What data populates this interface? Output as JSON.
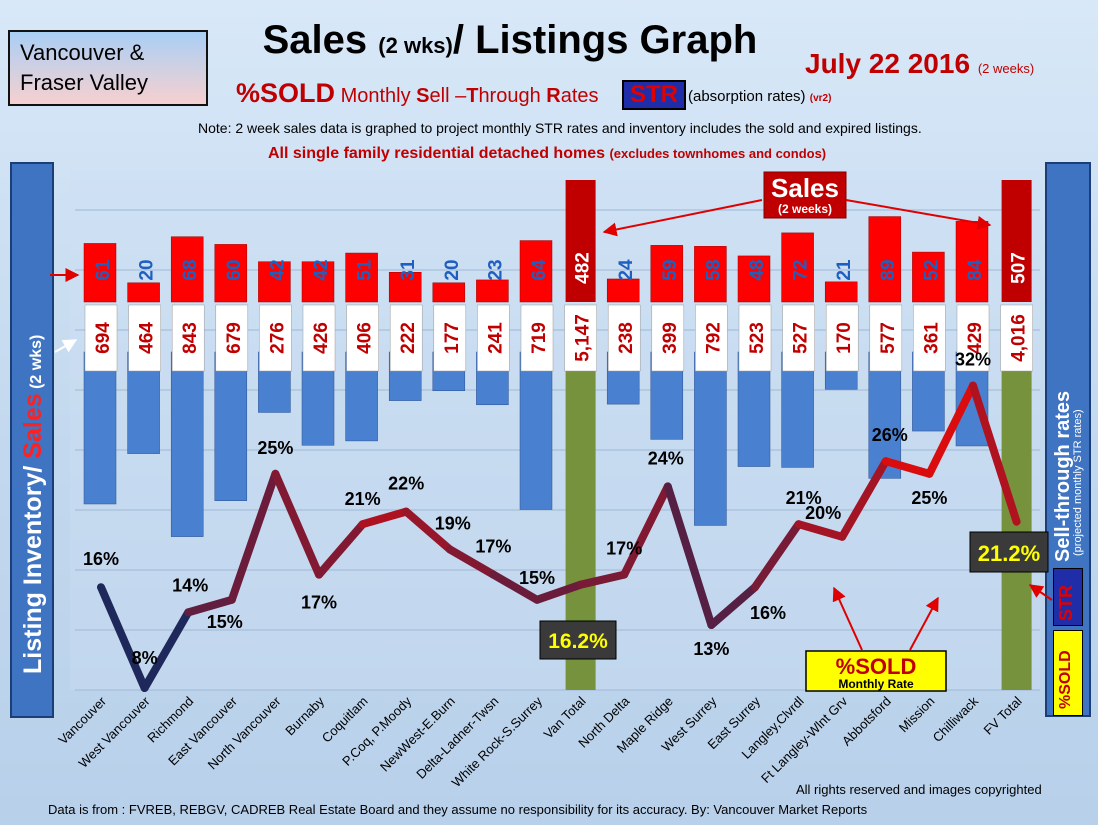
{
  "header": {
    "region_line1": "Vancouver &",
    "region_line2": "Fraser Valley",
    "title_main": "Sales ",
    "title_small": "(2 wks)",
    "title_end": "/ Listings Graph",
    "date": "July 22 2016",
    "date_note": "(2 weeks)",
    "subtitle_pct": "%SOLD",
    "subtitle_text": " Monthly ",
    "subtitle_s": "S",
    "subtitle_ell": "ell –",
    "subtitle_t": "T",
    "subtitle_hrough": "hrough ",
    "subtitle_r": "R",
    "subtitle_ates": "ates",
    "str_badge": "STR",
    "absorption": "(absorption rates) ",
    "version": "(vr2)",
    "note": "Note: 2 week sales data is graphed to project monthly STR rates and inventory includes the sold and expired listings.",
    "scope": "All single family residential detached homes ",
    "scope_small": "(excludes townhomes and condos)"
  },
  "left_axis": {
    "label1": "Listing Inventory/ ",
    "label2": "Sales",
    "label3": " (2 wks)"
  },
  "right_axis": {
    "label": "Sell-through rates",
    "sub": "(projected monthly STR rates)",
    "str": "STR",
    "pct": "%SOLD"
  },
  "callouts": {
    "sales_title": "Sales",
    "sales_sub": "(2 weeks)",
    "pctsold_title": "%SOLD",
    "pctsold_sub": "Monthly Rate",
    "van_total_rate": "16.2%",
    "fv_total_rate": "21.2%"
  },
  "colors": {
    "sales_bar": "#ff0000",
    "total_sales_bar": "#c00000",
    "inventory_bar": "#4a80d0",
    "total_bar": "#76923c",
    "line_red": "#e01010",
    "line_dark": "#1e2a5a"
  },
  "chart_data": {
    "type": "bar",
    "categories": [
      "Vancouver",
      "West Vancouver",
      "Richmond",
      "East Vancouver",
      "North Vancouver",
      "Burnaby",
      "Coquitlam",
      "P.Coq, P.Moody",
      "NewWest-E.Burn",
      "Delta-Ladner-Twsn",
      "White Rock-S.Surrey",
      "Van Total",
      "North Delta",
      "Maple Ridge",
      "West Surrey",
      "East Surrey",
      "Langley,Clvrdl",
      "Ft Langley-Wlnt Grv",
      "Abbotsford",
      "Mission",
      "Chilliwack",
      "FV Total"
    ],
    "series": [
      {
        "name": "Sales",
        "values": [
          61,
          20,
          68,
          60,
          42,
          42,
          51,
          31,
          20,
          23,
          64,
          482,
          24,
          59,
          58,
          48,
          72,
          21,
          89,
          52,
          84,
          507
        ]
      },
      {
        "name": "Listing Inventory",
        "values": [
          694,
          464,
          843,
          679,
          276,
          426,
          406,
          222,
          177,
          241,
          719,
          5147,
          238,
          399,
          792,
          523,
          527,
          170,
          577,
          361,
          429,
          4016
        ]
      },
      {
        "name": "STR",
        "values": [
          16,
          8,
          14,
          15,
          25,
          17,
          21,
          22,
          19,
          17,
          15,
          16.2,
          17,
          24,
          13,
          16,
          21,
          20,
          26,
          25,
          32,
          21.2
        ]
      }
    ],
    "sales_labels": [
      "61",
      "20",
      "68",
      "60",
      "42",
      "42",
      "51",
      "31",
      "20",
      "23",
      "64",
      "482",
      "24",
      "59",
      "58",
      "48",
      "72",
      "21",
      "89",
      "52",
      "84",
      "507"
    ],
    "inventory_labels": [
      "694",
      "464",
      "843",
      "679",
      "276",
      "426",
      "406",
      "222",
      "177",
      "241",
      "719",
      "5,147",
      "238",
      "399",
      "792",
      "523",
      "527",
      "170",
      "577",
      "361",
      "429",
      "4,016"
    ],
    "str_labels": [
      "16%",
      "8%",
      "14%",
      "15%",
      "25%",
      "17%",
      "21%",
      "22%",
      "19%",
      "17%",
      "15%",
      "",
      "17%",
      "24%",
      "13%",
      "16%",
      "21%",
      "20%",
      "26%",
      "25%",
      "32%",
      ""
    ]
  },
  "footer": {
    "rights": "All rights reserved and  images copyrighted",
    "source": "Data is from : FVREB, REBGV, CADREB Real Estate Board and they assume no responsibility  for its accuracy. By: Vancouver Market Reports"
  }
}
